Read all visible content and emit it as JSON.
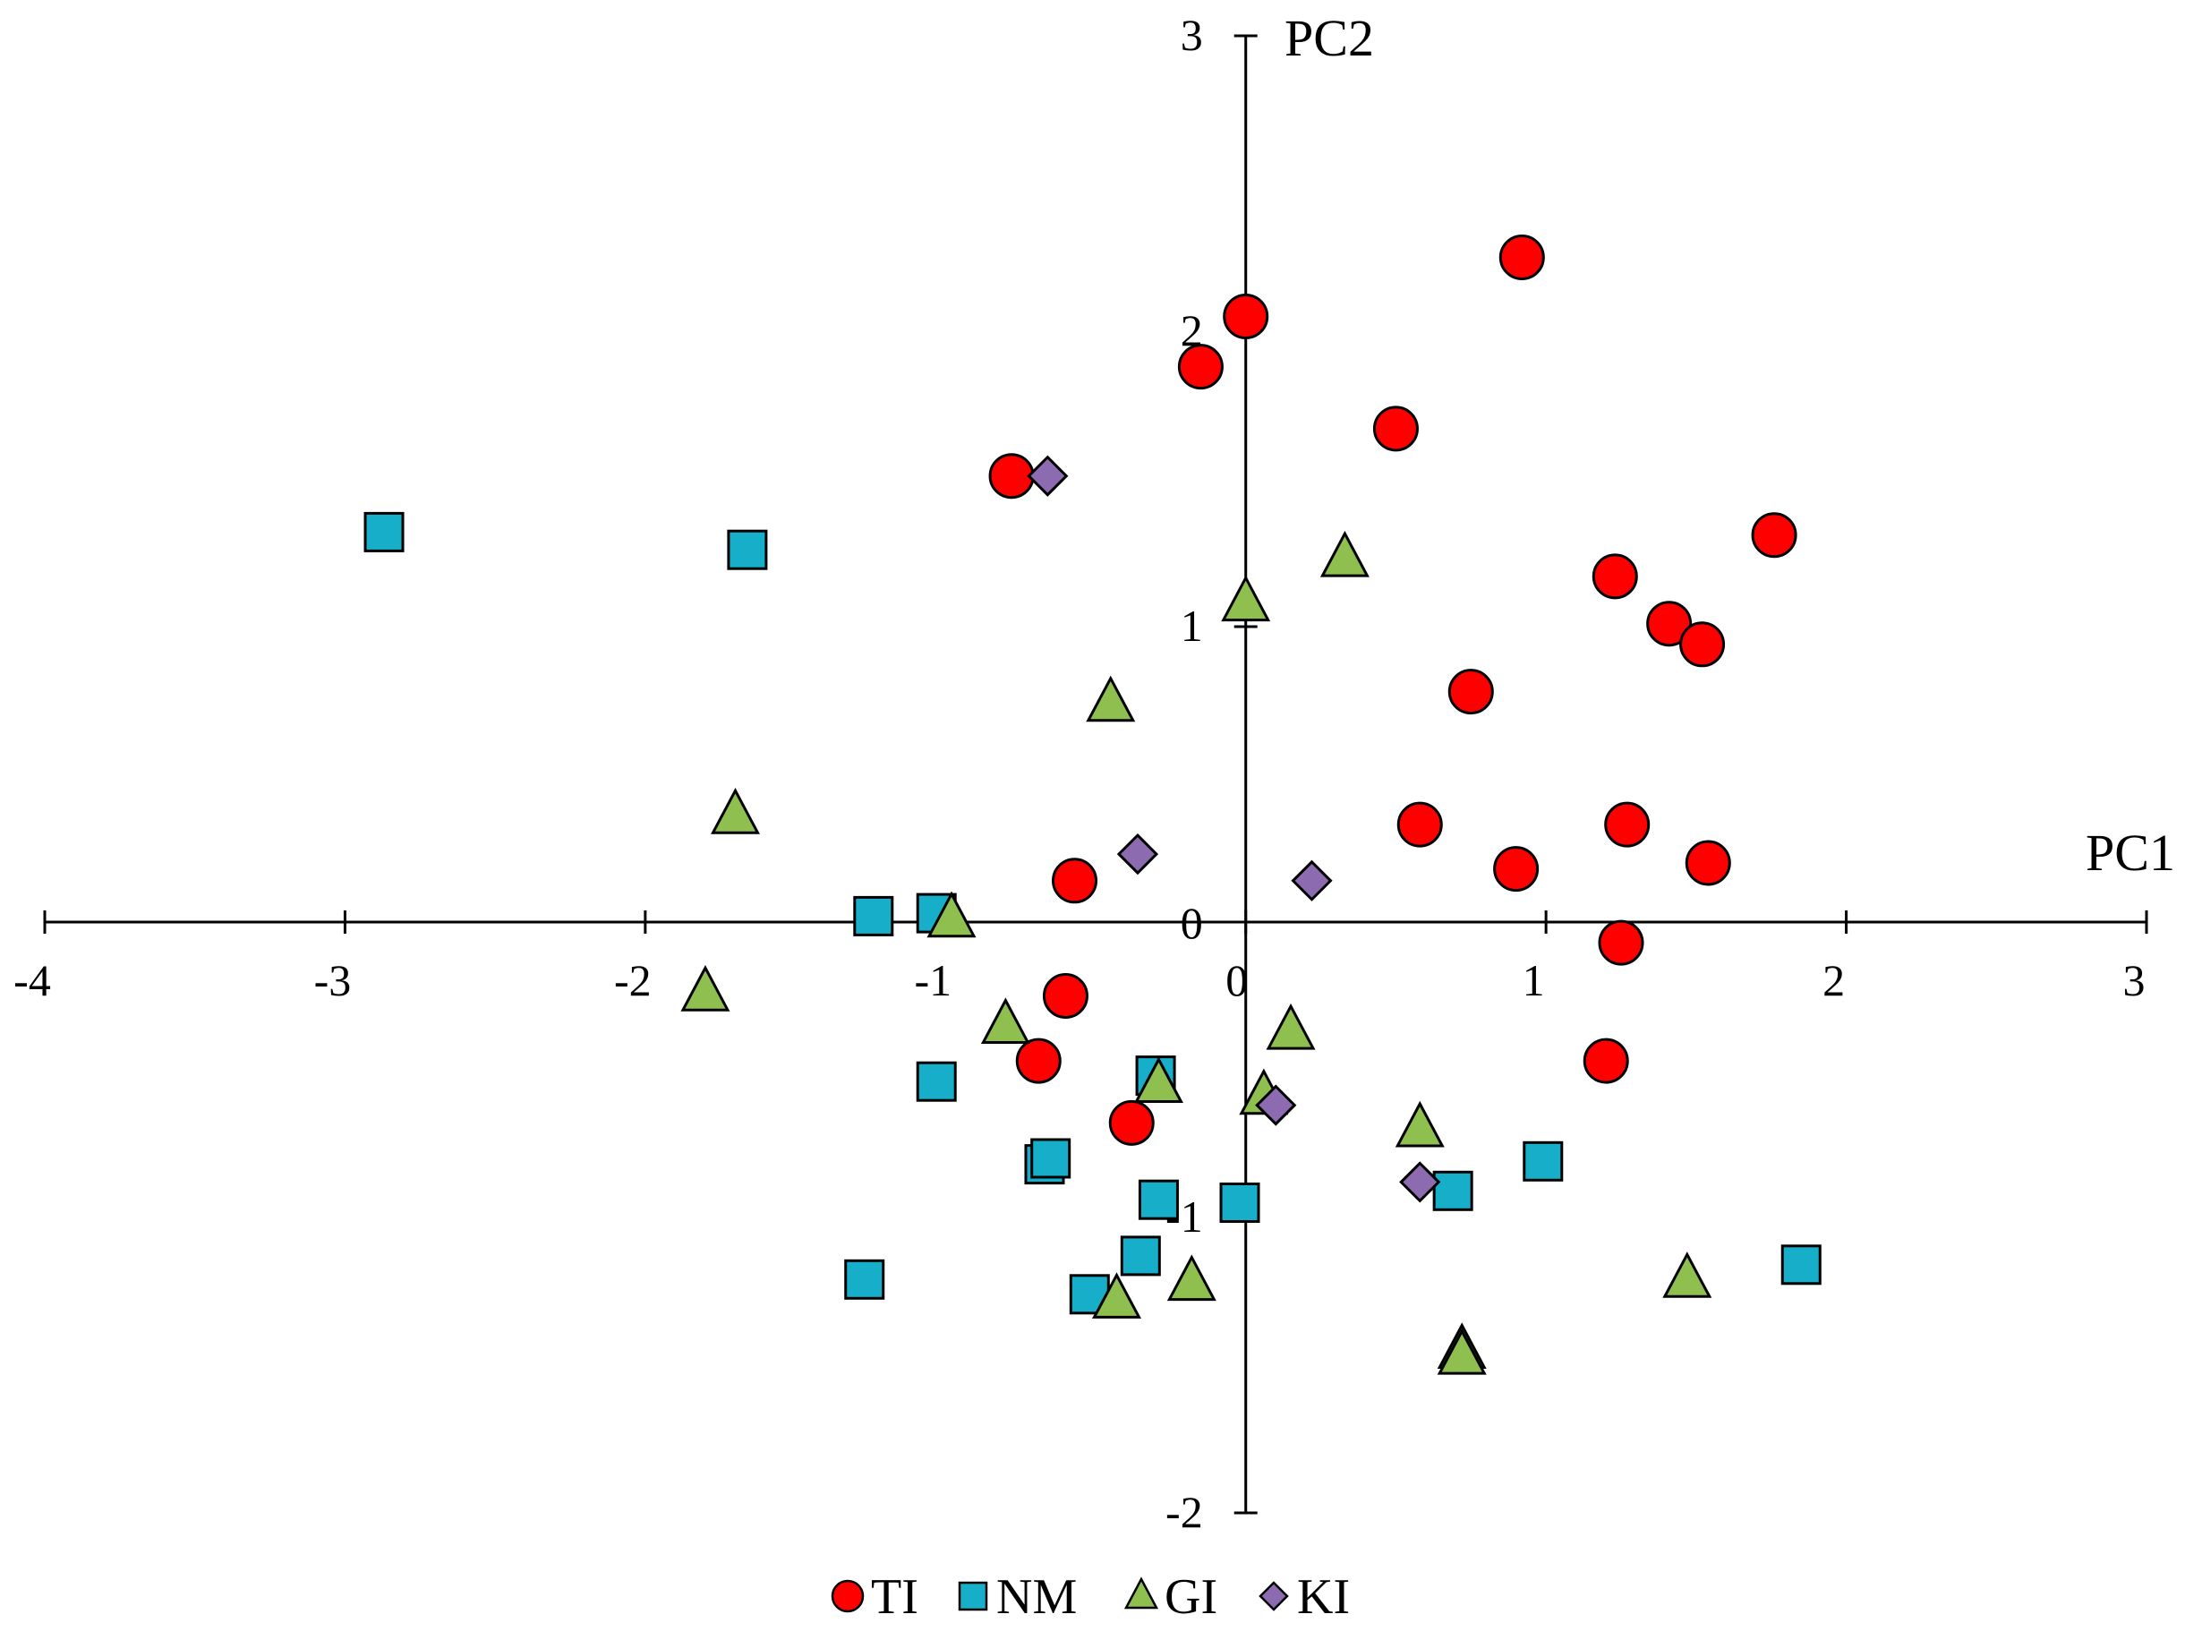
{
  "chart_data": {
    "type": "scatter",
    "title": "",
    "xlabel": "PC1",
    "ylabel": "PC2",
    "xlim": [
      -4,
      3
    ],
    "ylim": [
      -2,
      3
    ],
    "xticks": [
      "-4",
      "-3",
      "-2",
      "-1",
      "0",
      "1",
      "2",
      "3"
    ],
    "yticks": [
      "-2",
      "-1",
      "0",
      "1",
      "2",
      "3"
    ],
    "grid": false,
    "legend_position": "bottom",
    "series": [
      {
        "name": "TI",
        "marker": "circle",
        "color": "#FF0000",
        "points": [
          [
            0.92,
            2.25
          ],
          [
            0.0,
            2.05
          ],
          [
            -0.15,
            1.88
          ],
          [
            0.5,
            1.67
          ],
          [
            -0.78,
            1.51
          ],
          [
            1.76,
            1.31
          ],
          [
            1.23,
            1.17
          ],
          [
            1.41,
            1.01
          ],
          [
            1.52,
            0.94
          ],
          [
            0.75,
            0.78
          ],
          [
            0.58,
            0.33
          ],
          [
            1.27,
            0.33
          ],
          [
            0.9,
            0.18
          ],
          [
            1.54,
            0.2
          ],
          [
            -0.57,
            0.14
          ],
          [
            1.25,
            -0.07
          ],
          [
            -0.6,
            -0.25
          ],
          [
            -0.69,
            -0.47
          ],
          [
            1.2,
            -0.47
          ],
          [
            -0.38,
            -0.68
          ]
        ]
      },
      {
        "name": "NM",
        "marker": "square",
        "color": "#17AEC9",
        "points": [
          [
            -2.87,
            1.32
          ],
          [
            -1.66,
            1.26
          ],
          [
            -1.24,
            0.02
          ],
          [
            -1.03,
            0.03
          ],
          [
            -1.03,
            -0.54
          ],
          [
            -0.3,
            -0.52
          ],
          [
            -0.67,
            -0.82
          ],
          [
            -0.65,
            -0.8
          ],
          [
            -0.29,
            -0.94
          ],
          [
            -0.02,
            -0.95
          ],
          [
            -0.35,
            -1.13
          ],
          [
            -0.52,
            -1.26
          ],
          [
            0.69,
            -0.91
          ],
          [
            0.99,
            -0.81
          ],
          [
            1.85,
            -1.16
          ],
          [
            -1.27,
            -1.21
          ]
        ]
      },
      {
        "name": "GI",
        "marker": "triangle",
        "color": "#8FBF4F",
        "points": [
          [
            0.33,
            1.23
          ],
          [
            0.0,
            1.08
          ],
          [
            -0.45,
            0.74
          ],
          [
            -1.7,
            0.36
          ],
          [
            -0.98,
            0.01
          ],
          [
            -1.8,
            -0.24
          ],
          [
            -0.8,
            -0.35
          ],
          [
            0.15,
            -0.37
          ],
          [
            -0.29,
            -0.55
          ],
          [
            0.06,
            -0.59
          ],
          [
            0.58,
            -0.7
          ],
          [
            -0.43,
            -1.28
          ],
          [
            -0.18,
            -1.22
          ],
          [
            1.47,
            -1.21
          ],
          [
            0.72,
            -1.45
          ],
          [
            0.72,
            -1.47
          ]
        ]
      },
      {
        "name": "KI",
        "marker": "diamond",
        "color": "#8C6BB1",
        "points": [
          [
            -0.66,
            1.51
          ],
          [
            -0.36,
            0.23
          ],
          [
            0.22,
            0.14
          ],
          [
            0.1,
            -0.62
          ],
          [
            0.58,
            -0.88
          ]
        ]
      }
    ]
  }
}
